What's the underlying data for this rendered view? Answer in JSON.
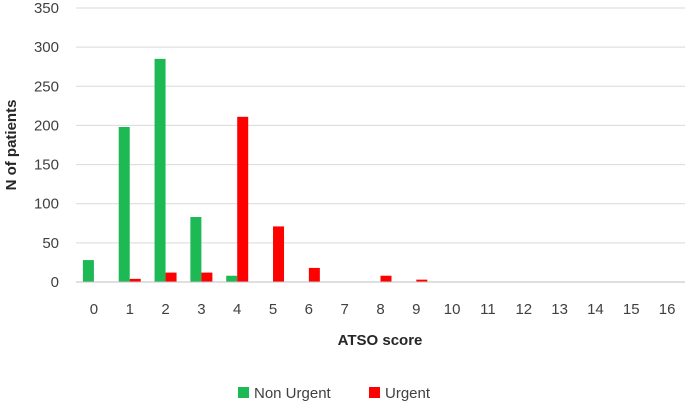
{
  "chart_data": {
    "type": "bar",
    "title": "",
    "xlabel": "ATSO score",
    "ylabel": "N of patients",
    "categories": [
      "0",
      "1",
      "2",
      "3",
      "4",
      "5",
      "6",
      "7",
      "8",
      "9",
      "10",
      "11",
      "12",
      "13",
      "14",
      "15",
      "16"
    ],
    "series": [
      {
        "name": "Non Urgent",
        "color": "#1DB954",
        "values": [
          28,
          198,
          285,
          83,
          8,
          0,
          0,
          0,
          0,
          0,
          0,
          0,
          0,
          0,
          0,
          0,
          0
        ]
      },
      {
        "name": "Urgent",
        "color": "#FF0000",
        "values": [
          0,
          4,
          12,
          12,
          211,
          71,
          18,
          0,
          8,
          3,
          0,
          0,
          0,
          0,
          0,
          0,
          0
        ]
      }
    ],
    "ylim": [
      0,
      350
    ],
    "yticks": [
      0,
      50,
      100,
      150,
      200,
      250,
      300,
      350
    ],
    "grid": true,
    "legend": "bottom"
  }
}
